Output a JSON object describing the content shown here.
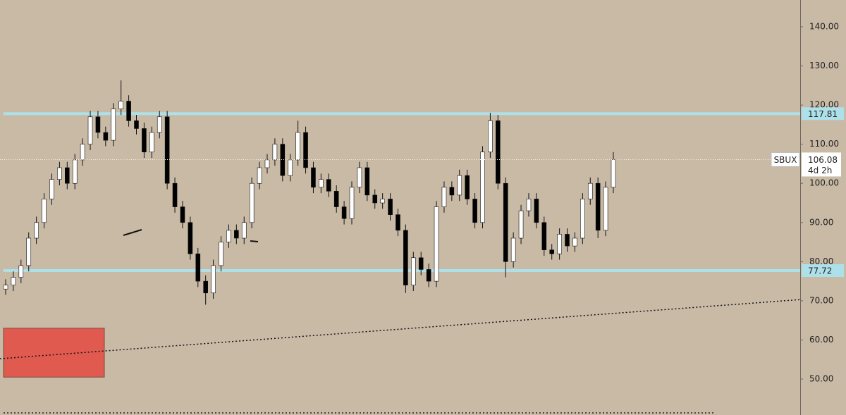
{
  "chart_data": {
    "type": "candlestick",
    "symbol": "SBUX",
    "countdown": "4d 2h",
    "up_color": "#ffffff",
    "down_color": "#000000",
    "level_color": "#aee0ea",
    "levels": [
      117.81,
      77.72
    ],
    "trendline": [
      55.2,
      70.3
    ],
    "zone": {
      "low": 50.5,
      "high": 63,
      "color": "#e05a50"
    },
    "ylim": [
      40.82,
      146.84
    ],
    "yticks": [
      {
        "value": 50,
        "label": "50.00"
      },
      {
        "value": 60,
        "label": "60.00"
      },
      {
        "value": 70,
        "label": "70.00"
      },
      {
        "value": 80,
        "label": "80.00"
      },
      {
        "value": 90,
        "label": "90.00"
      },
      {
        "value": 100,
        "label": "100.00"
      },
      {
        "value": 110,
        "label": "110.00"
      },
      {
        "value": 120,
        "label": "120.00"
      },
      {
        "value": 130,
        "label": "130.00"
      },
      {
        "value": 140,
        "label": "140.00"
      }
    ],
    "open": [
      73,
      74,
      76,
      79,
      86,
      90,
      96,
      101,
      104,
      100,
      106,
      110,
      117,
      113,
      111,
      119,
      121,
      116,
      114,
      108,
      113,
      117,
      100,
      94,
      90,
      82,
      75,
      72,
      79,
      85,
      88,
      86,
      90,
      100,
      104,
      106,
      110,
      102,
      106,
      113,
      104,
      99,
      101,
      98,
      94,
      91,
      99,
      104,
      97,
      95,
      96,
      92,
      88,
      74,
      81,
      78,
      75,
      94,
      99,
      97,
      102,
      96,
      90,
      108,
      116,
      100,
      80,
      86,
      93,
      96,
      90,
      83,
      82,
      87,
      84,
      86,
      96,
      100,
      88,
      99
    ],
    "high": [
      75.5,
      77.5,
      80.5,
      87.5,
      91.5,
      97.5,
      102.5,
      105.5,
      105.5,
      107.5,
      111.5,
      118.5,
      118.5,
      114.5,
      120.5,
      126.3,
      122.5,
      117.5,
      115.5,
      114.5,
      118.5,
      118.5,
      101.5,
      95.5,
      91.5,
      83.5,
      76.5,
      80.5,
      86.5,
      89.5,
      89.5,
      91.5,
      101.5,
      105.5,
      107.5,
      111.5,
      111.5,
      107.5,
      116,
      114.5,
      105.5,
      102.5,
      102.5,
      99.5,
      95.5,
      100.5,
      105.5,
      105.5,
      98.5,
      97.5,
      97.5,
      93.5,
      89.5,
      82.5,
      82.5,
      79.5,
      95.5,
      100.5,
      100.5,
      103.5,
      103.5,
      97.5,
      109.5,
      118,
      117.5,
      101.5,
      87.5,
      94.5,
      97.5,
      97.5,
      91.5,
      84.5,
      88.5,
      88.5,
      87.5,
      97.5,
      101.5,
      101.5,
      100.5,
      108
    ],
    "low": [
      71.5,
      72.5,
      74.5,
      77.5,
      84.5,
      88.5,
      94.5,
      99.5,
      98.5,
      98.5,
      104.5,
      108.5,
      111.5,
      109.5,
      109.5,
      117.5,
      114.5,
      112.5,
      106.5,
      106.5,
      111.5,
      98.5,
      92.5,
      88.5,
      80.5,
      73.5,
      69,
      70.5,
      77.5,
      83.5,
      84.5,
      84.5,
      88.5,
      98.5,
      102.5,
      104.5,
      100.5,
      100.5,
      104.5,
      102.5,
      97.5,
      97.5,
      96.5,
      92.5,
      89.5,
      89.5,
      97.5,
      95.5,
      93.5,
      93.5,
      90.5,
      86.5,
      72,
      72.5,
      76.5,
      73.5,
      73.5,
      92.5,
      95.5,
      95.5,
      94.5,
      88.5,
      88.5,
      106.5,
      98.5,
      76,
      78.5,
      84.5,
      91.5,
      88.5,
      81.5,
      80.5,
      80.5,
      82.5,
      82.5,
      84.5,
      94.5,
      86,
      86.5,
      97.5
    ],
    "close": [
      74,
      76,
      79,
      86,
      90,
      96,
      101,
      104,
      100,
      106,
      110,
      117,
      113,
      111,
      119,
      121,
      116,
      114,
      108,
      113,
      117,
      100,
      94,
      90,
      82,
      75,
      72,
      79,
      85,
      88,
      86,
      90,
      100,
      104,
      106,
      110,
      102,
      106,
      113,
      104,
      99,
      101,
      98,
      94,
      91,
      99,
      104,
      97,
      95,
      96,
      92,
      88,
      74,
      81,
      78,
      75,
      94,
      99,
      97,
      102,
      96,
      90,
      108,
      116,
      100,
      80,
      86,
      93,
      96,
      90,
      83,
      82,
      87,
      84,
      86,
      96,
      100,
      88,
      99,
      106.08
    ]
  }
}
